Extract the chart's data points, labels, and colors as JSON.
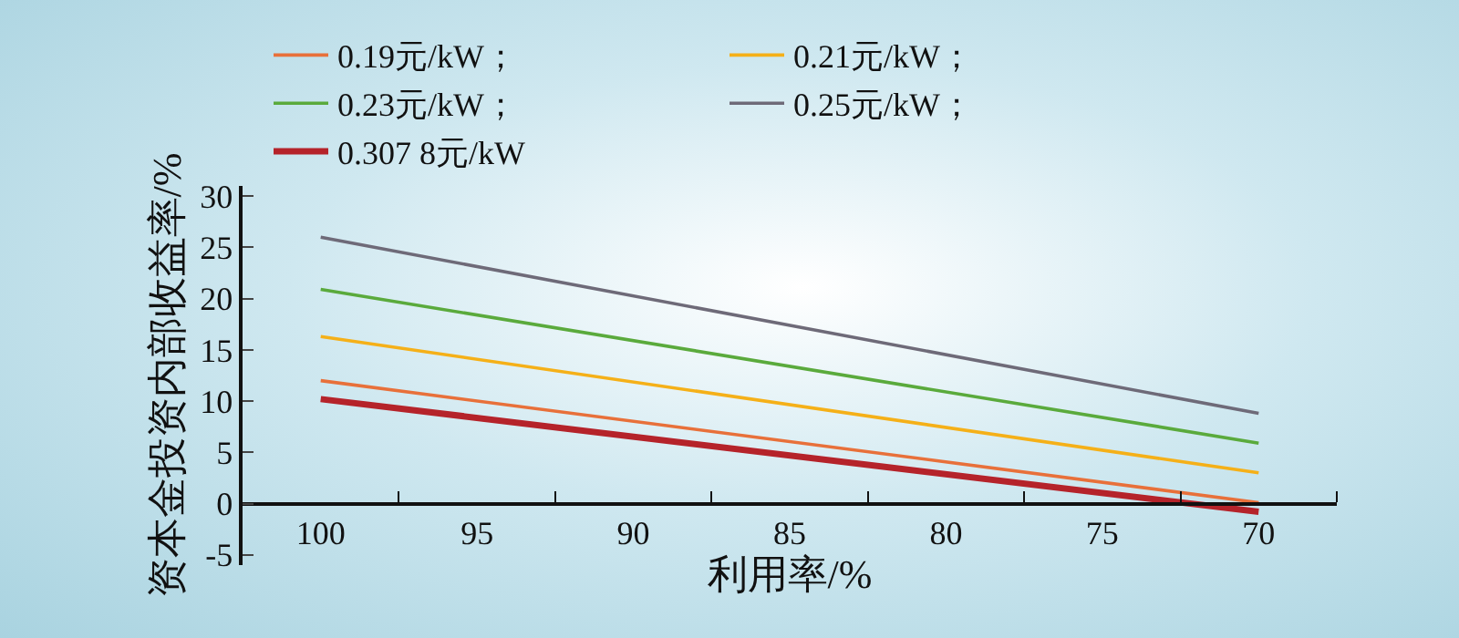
{
  "chart_data": {
    "type": "line",
    "xlabel": "利用率/%",
    "ylabel": "资本金投资内部收益率/%",
    "x": [
      100,
      70
    ],
    "series": [
      {
        "name": "0.19元/kW；",
        "color": "#e8703a",
        "values": [
          12,
          0.1
        ]
      },
      {
        "name": "0.21元/kW；",
        "color": "#f5b018",
        "values": [
          16.3,
          3.0
        ]
      },
      {
        "name": "0.23元/kW；",
        "color": "#5aaa3c",
        "values": [
          20.9,
          5.9
        ]
      },
      {
        "name": "0.25元/kW；",
        "color": "#6e6a78",
        "values": [
          26,
          8.8
        ]
      },
      {
        "name": "0.307 8元/kW",
        "color": "#b5232a",
        "values": [
          10.2,
          -0.8
        ]
      }
    ],
    "xlim": [
      102.5,
      67.5
    ],
    "xticks": [
      100,
      95,
      90,
      85,
      80,
      75,
      70,
      {
        "value": 97.5,
        "label": null
      },
      {
        "value": 92.5,
        "label": null
      },
      {
        "value": 87.5,
        "label": null
      },
      {
        "value": 82.5,
        "label": null
      },
      {
        "value": 77.5,
        "label": null
      },
      {
        "value": 72.5,
        "label": null
      },
      {
        "value": 67.5,
        "label": null
      }
    ],
    "ylim": [
      -6,
      31
    ],
    "yticks": [
      -5,
      0,
      5,
      10,
      15,
      20,
      25,
      30
    ],
    "grid": false,
    "legend": "top",
    "marker": "none",
    "line_style": "solid"
  }
}
